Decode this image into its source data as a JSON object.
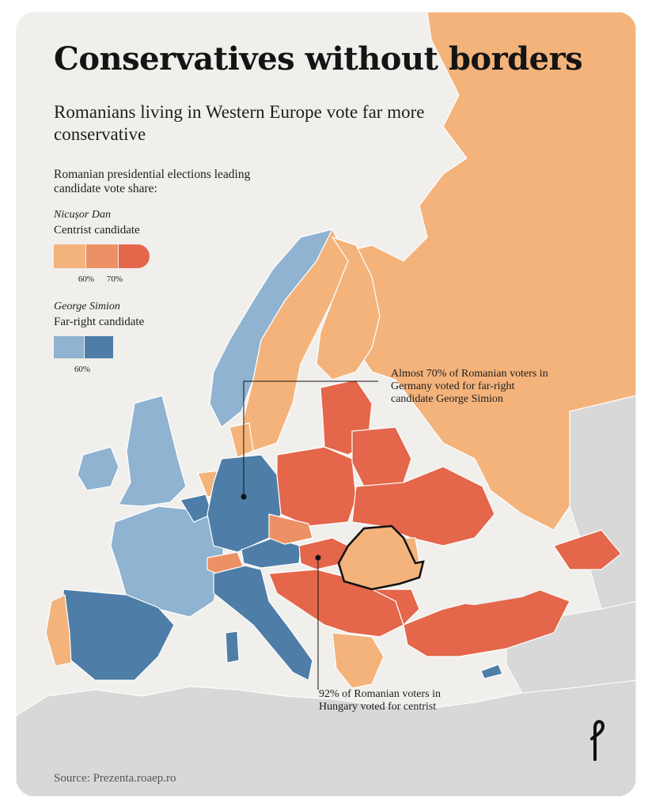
{
  "title": "Conservatives without borders",
  "subtitle": "Romanians living in Western Europe vote far more conservative",
  "legend": {
    "heading": "Romanian presidential elections leading candidate vote share:",
    "dan": {
      "name": "Nicușor Dan",
      "description": "Centrist candidate",
      "colors": [
        "#f3b37b",
        "#ec9065",
        "#e4664b"
      ],
      "ticks": [
        "60%",
        "70%"
      ]
    },
    "simion": {
      "name": "George Simion",
      "description": "Far-right candidate",
      "colors": [
        "#8fb3d1",
        "#4e7ea8"
      ],
      "ticks": [
        "60%"
      ]
    }
  },
  "colors": {
    "background": "#f1efec",
    "no_data_land": "#d6d6d6",
    "sea": "#f1efec",
    "romania_outline": "#111111"
  },
  "annotations": {
    "germany": "Almost 70% of Romanian voters in Germany voted for far-right candidate George Simion",
    "hungary": "92% of Romanian voters in Hungary voted for centrist"
  },
  "source": "Source: Prezenta.roaep.ro"
}
